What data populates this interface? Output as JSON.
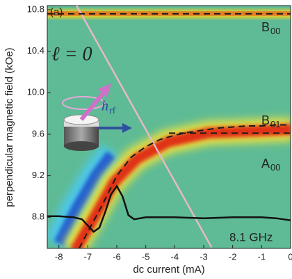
{
  "chart_data": {
    "type": "line",
    "x_label": "dc current (mA)",
    "y_label": "perpendicular magnetic field (kOe)",
    "xlim": [
      -8.4,
      0
    ],
    "ylim": [
      8.5,
      10.84
    ],
    "xticks": [
      -8,
      -7,
      -6,
      -5,
      -4,
      -3,
      -2,
      -1,
      0
    ],
    "yticks": [
      8.8,
      9.2,
      9.6,
      {
        "value": 10,
        "label": "10.0"
      },
      10.4,
      10.8
    ],
    "series": [
      {
        "color": "#e8b8c4",
        "dash": false,
        "width": 2.5,
        "x": [
          -7.39,
          -2.73
        ],
        "values": [
          10.84,
          8.51
        ]
      },
      {
        "color": "#1a1a1a",
        "dash": true,
        "width": 2,
        "x": [
          -8.4,
          0
        ],
        "values": [
          10.76,
          10.76
        ]
      },
      {
        "color": "#1a1a1a",
        "dash": true,
        "width": 2,
        "x": [
          -4.2,
          0
        ],
        "values": [
          9.61,
          9.61
        ]
      },
      {
        "color": "#1a1a1a",
        "dash": true,
        "width": 2,
        "x": [
          -7.3,
          -7,
          -6.5,
          -6,
          -5.5,
          -5,
          -4.5,
          -4,
          -3.5,
          -3,
          -2.5,
          -2,
          -1.5,
          -1,
          -0.5,
          0
        ],
        "values": [
          8.5,
          8.66,
          8.92,
          9.2,
          9.38,
          9.48,
          9.55,
          9.59,
          9.62,
          9.64,
          9.66,
          9.67,
          9.68,
          9.68,
          9.69,
          9.69
        ]
      },
      {
        "color": "#111111",
        "dash": false,
        "width": 2.5,
        "x": [
          -8.4,
          -8,
          -7.5,
          -7.2,
          -7,
          -6.8,
          -6.6,
          -6.4,
          -6.2,
          -6,
          -5.8,
          -5.6,
          -5.4,
          -5,
          -4.5,
          -4,
          -3,
          -2,
          -1,
          -0.5,
          0
        ],
        "values": [
          8.81,
          8.81,
          8.8,
          8.78,
          8.72,
          8.66,
          8.7,
          8.85,
          9.02,
          9.1,
          9.0,
          8.82,
          8.78,
          8.8,
          8.8,
          8.8,
          8.79,
          8.8,
          8.8,
          8.79,
          8.77
        ]
      }
    ],
    "annotations": [
      {
        "text": "(a)"
      },
      {
        "text": "ℓ = 0"
      },
      {
        "text": "B",
        "sub": "00"
      },
      {
        "text": "B",
        "sub": "01"
      },
      {
        "text": "A",
        "sub": "00"
      },
      {
        "text": "8.1 GHz"
      },
      {
        "text": "h",
        "sub": "rf"
      }
    ]
  }
}
